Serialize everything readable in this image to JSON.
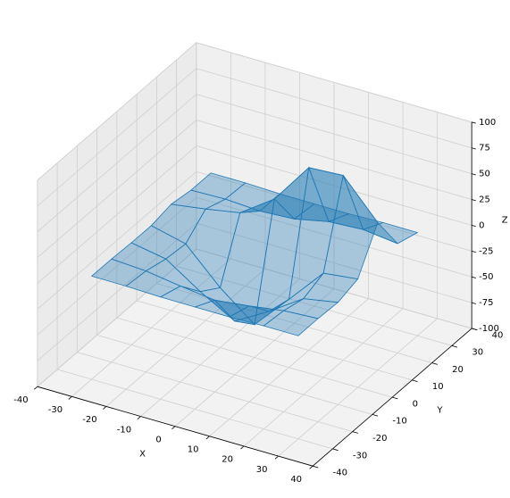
{
  "chart_data": {
    "type": "surface",
    "x": [
      -30,
      -20,
      -10,
      0,
      10,
      20,
      30
    ],
    "y": [
      -30,
      -20,
      -10,
      0,
      10,
      20,
      30
    ],
    "z": [
      [
        0,
        0,
        -1,
        -1,
        -1,
        0,
        0
      ],
      [
        0,
        -2,
        -7,
        -11,
        -7,
        -2,
        0
      ],
      [
        -1,
        -7,
        -29,
        -48,
        -29,
        -7,
        -1
      ],
      [
        -1,
        -9,
        -42,
        -68,
        -34,
        1,
        5
      ],
      [
        3,
        8,
        14,
        37,
        77,
        79,
        43
      ],
      [
        0,
        1,
        -1,
        1,
        8,
        10,
        6
      ],
      [
        0,
        0,
        -1,
        -1,
        -1,
        0,
        0
      ]
    ],
    "color": "#1f77b4",
    "xlabel": "X",
    "ylabel": "Y",
    "zlabel": "Z",
    "xlim": [
      -40,
      40
    ],
    "ylim": [
      -40,
      40
    ],
    "zlim": [
      -100,
      100
    ],
    "xticks": [
      -40,
      -30,
      -20,
      -10,
      0,
      10,
      20,
      30,
      40
    ],
    "yticks": [
      -40,
      -30,
      -20,
      -10,
      0,
      10,
      20,
      30,
      40
    ],
    "zticks": [
      -100,
      -75,
      -50,
      -25,
      0,
      25,
      50,
      75,
      100
    ],
    "grid": true
  }
}
